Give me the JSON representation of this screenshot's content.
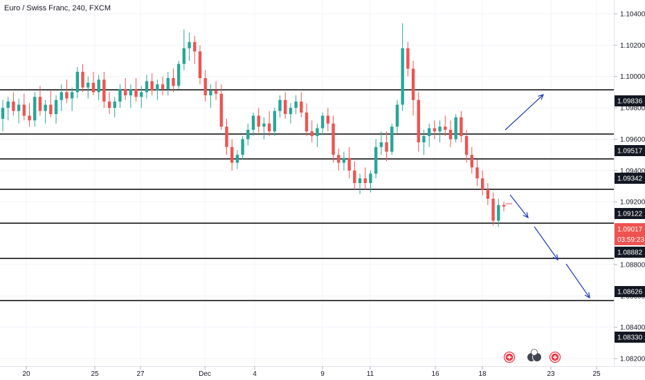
{
  "chart_data": {
    "type": "candlestick",
    "title": "Euro / Swiss Franc, 240, FXCM",
    "ylim": [
      1.0812,
      1.1058
    ],
    "y_ticks": [
      "1.10400",
      "1.10200",
      "1.10000",
      "1.09800",
      "1.09600",
      "1.09400",
      "1.09200",
      "1.08800",
      "1.08600",
      "1.08400",
      "1.08200"
    ],
    "x_ticks": [
      "20",
      "25",
      "27",
      "Dec",
      "4",
      "9",
      "11",
      "16",
      "18",
      "23",
      "25"
    ],
    "horizontal_levels": [
      {
        "value": 1.09895,
        "label": "1.09836"
      },
      {
        "value": 1.09625,
        "label": "1.09517"
      },
      {
        "value": 1.0948,
        "label": "1.09342"
      },
      {
        "value": 1.09285,
        "label": "1.09122"
      },
      {
        "value": 1.09065,
        "label": ""
      },
      {
        "value": 1.08838,
        "label": "1.08882"
      },
      {
        "value": 1.08575,
        "label": "1.08626"
      },
      {
        "value": null,
        "label": "1.08330"
      }
    ],
    "current_price": {
      "label": "1.09017",
      "countdown": "03:59:23",
      "color": "#ef5350"
    },
    "colors": {
      "up": "#26a69a",
      "down": "#ef5350",
      "line": "#000000",
      "arrow": "#1e3ab8",
      "tag_bg": "#131722"
    },
    "candles": [
      [
        1.0973,
        1.0985,
        1.0965,
        1.098
      ],
      [
        1.098,
        1.0987,
        1.0972,
        1.0984
      ],
      [
        1.0984,
        1.099,
        1.0975,
        1.0978
      ],
      [
        1.0978,
        1.0986,
        1.097,
        1.0982
      ],
      [
        1.0982,
        1.0989,
        1.0972,
        1.0975
      ],
      [
        1.0975,
        1.0983,
        1.0968,
        1.0972
      ],
      [
        1.0972,
        1.099,
        1.0968,
        1.0987
      ],
      [
        1.0987,
        1.0994,
        1.0975,
        1.0978
      ],
      [
        1.0978,
        1.0985,
        1.097,
        1.0982
      ],
      [
        1.0982,
        1.0991,
        1.0974,
        1.0976
      ],
      [
        1.0976,
        1.0988,
        1.097,
        1.0985
      ],
      [
        1.0985,
        1.0995,
        1.0978,
        1.099
      ],
      [
        1.099,
        1.0998,
        1.0983,
        1.0986
      ],
      [
        1.0986,
        1.0993,
        1.0978,
        1.099
      ],
      [
        1.099,
        1.1006,
        1.0986,
        1.1003
      ],
      [
        1.1003,
        1.1008,
        1.099,
        1.0993
      ],
      [
        1.0993,
        1.1,
        1.0986,
        1.0996
      ],
      [
        1.0996,
        1.1003,
        1.0988,
        1.099
      ],
      [
        1.099,
        1.1001,
        1.0985,
        1.0998
      ],
      [
        1.0998,
        1.1003,
        1.098,
        1.0984
      ],
      [
        1.0984,
        1.099,
        1.0976,
        1.098
      ],
      [
        1.098,
        1.0987,
        1.0974,
        1.0984
      ],
      [
        1.0984,
        1.0995,
        1.098,
        1.0992
      ],
      [
        1.0992,
        1.0999,
        1.0985,
        1.0988
      ],
      [
        1.0988,
        1.0995,
        1.098,
        1.0992
      ],
      [
        1.0992,
        1.0999,
        1.0984,
        1.0987
      ],
      [
        1.0987,
        1.0994,
        1.098,
        1.099
      ],
      [
        1.099,
        1.1001,
        1.0986,
        1.0997
      ],
      [
        1.0997,
        1.1002,
        1.0988,
        1.0991
      ],
      [
        1.0991,
        1.0998,
        1.0985,
        1.0995
      ],
      [
        1.0995,
        1.1,
        1.0988,
        1.0992
      ],
      [
        1.0992,
        1.1003,
        1.0988,
        1.0999
      ],
      [
        1.0999,
        1.1005,
        1.099,
        1.0994
      ],
      [
        1.0994,
        1.101,
        1.0992,
        1.1008
      ],
      [
        1.1008,
        1.103,
        1.1004,
        1.1018
      ],
      [
        1.1018,
        1.1028,
        1.101,
        1.1022
      ],
      [
        1.1022,
        1.1026,
        1.1008,
        1.1016
      ],
      [
        1.1016,
        1.102,
        1.0995,
        1.0999
      ],
      [
        1.0999,
        1.1004,
        1.0984,
        1.0988
      ],
      [
        1.0988,
        1.0995,
        1.098,
        1.0991
      ],
      [
        1.0991,
        1.0997,
        1.0985,
        1.0989
      ],
      [
        1.0989,
        1.0995,
        1.0966,
        1.0968
      ],
      [
        1.0968,
        1.0973,
        1.095,
        1.0955
      ],
      [
        1.0955,
        1.096,
        1.094,
        1.0945
      ],
      [
        1.0945,
        1.0953,
        1.0941,
        1.095
      ],
      [
        1.095,
        1.0962,
        1.0947,
        1.096
      ],
      [
        1.096,
        1.097,
        1.0956,
        1.0966
      ],
      [
        1.0966,
        1.0977,
        1.0962,
        1.0975
      ],
      [
        1.0975,
        1.098,
        1.0964,
        1.0968
      ],
      [
        1.0968,
        1.0974,
        1.096,
        1.097
      ],
      [
        1.097,
        1.0978,
        1.0962,
        1.0965
      ],
      [
        1.0965,
        1.098,
        1.0962,
        1.0978
      ],
      [
        1.0978,
        1.0988,
        1.0974,
        1.0985
      ],
      [
        1.0985,
        1.099,
        1.0973,
        1.0976
      ],
      [
        1.0976,
        1.0983,
        1.097,
        1.098
      ],
      [
        1.098,
        1.0988,
        1.0976,
        1.0984
      ],
      [
        1.0984,
        1.099,
        1.0974,
        1.0977
      ],
      [
        1.0977,
        1.0983,
        1.0962,
        1.0965
      ],
      [
        1.0965,
        1.0972,
        1.0958,
        1.0962
      ],
      [
        1.0962,
        1.097,
        1.0955,
        1.0967
      ],
      [
        1.0967,
        1.0977,
        1.0963,
        1.0975
      ],
      [
        1.0975,
        1.098,
        1.0965,
        1.097
      ],
      [
        1.097,
        1.0975,
        1.0945,
        1.095
      ],
      [
        1.095,
        1.0954,
        1.094,
        1.0945
      ],
      [
        1.0945,
        1.0952,
        1.094,
        1.0948
      ],
      [
        1.0948,
        1.0955,
        1.0935,
        1.094
      ],
      [
        1.094,
        1.0946,
        1.0928,
        1.0932
      ],
      [
        1.0932,
        1.0938,
        1.0925,
        1.0935
      ],
      [
        1.0935,
        1.0942,
        1.0928,
        1.0932
      ],
      [
        1.0932,
        1.094,
        1.0926,
        1.0938
      ],
      [
        1.0938,
        1.096,
        1.0935,
        1.0955
      ],
      [
        1.0955,
        1.0965,
        1.095,
        1.0958
      ],
      [
        1.0958,
        1.0965,
        1.0946,
        1.0952
      ],
      [
        1.0952,
        1.097,
        1.095,
        1.0968
      ],
      [
        1.0968,
        1.0985,
        1.0964,
        1.0982
      ],
      [
        1.0982,
        1.1034,
        1.0978,
        1.1018
      ],
      [
        1.1018,
        1.1022,
        1.1,
        1.1005
      ],
      [
        1.1005,
        1.101,
        1.0975,
        1.0985
      ],
      [
        1.0985,
        1.099,
        1.0952,
        1.0958
      ],
      [
        1.0958,
        1.0966,
        1.095,
        1.0962
      ],
      [
        1.0962,
        1.097,
        1.0955,
        1.0967
      ],
      [
        1.0967,
        1.0972,
        1.096,
        1.0965
      ],
      [
        1.0965,
        1.0972,
        1.0958,
        1.0968
      ],
      [
        1.0968,
        1.0975,
        1.0962,
        1.0966
      ],
      [
        1.0966,
        1.0972,
        1.0955,
        1.096
      ],
      [
        1.096,
        1.0976,
        1.0958,
        1.0974
      ],
      [
        1.0974,
        1.0978,
        1.0958,
        1.0962
      ],
      [
        1.0962,
        1.0966,
        1.0945,
        1.095
      ],
      [
        1.095,
        1.0955,
        1.0938,
        1.0942
      ],
      [
        1.0942,
        1.0947,
        1.093,
        1.0935
      ],
      [
        1.0935,
        1.094,
        1.0924,
        1.0928
      ],
      [
        1.0928,
        1.0932,
        1.0918,
        1.0922
      ],
      [
        1.0922,
        1.0926,
        1.0905,
        1.0908
      ],
      [
        1.0908,
        1.0922,
        1.0904,
        1.0918
      ],
      [
        1.0918,
        1.092,
        1.0914,
        1.0917
      ]
    ]
  }
}
